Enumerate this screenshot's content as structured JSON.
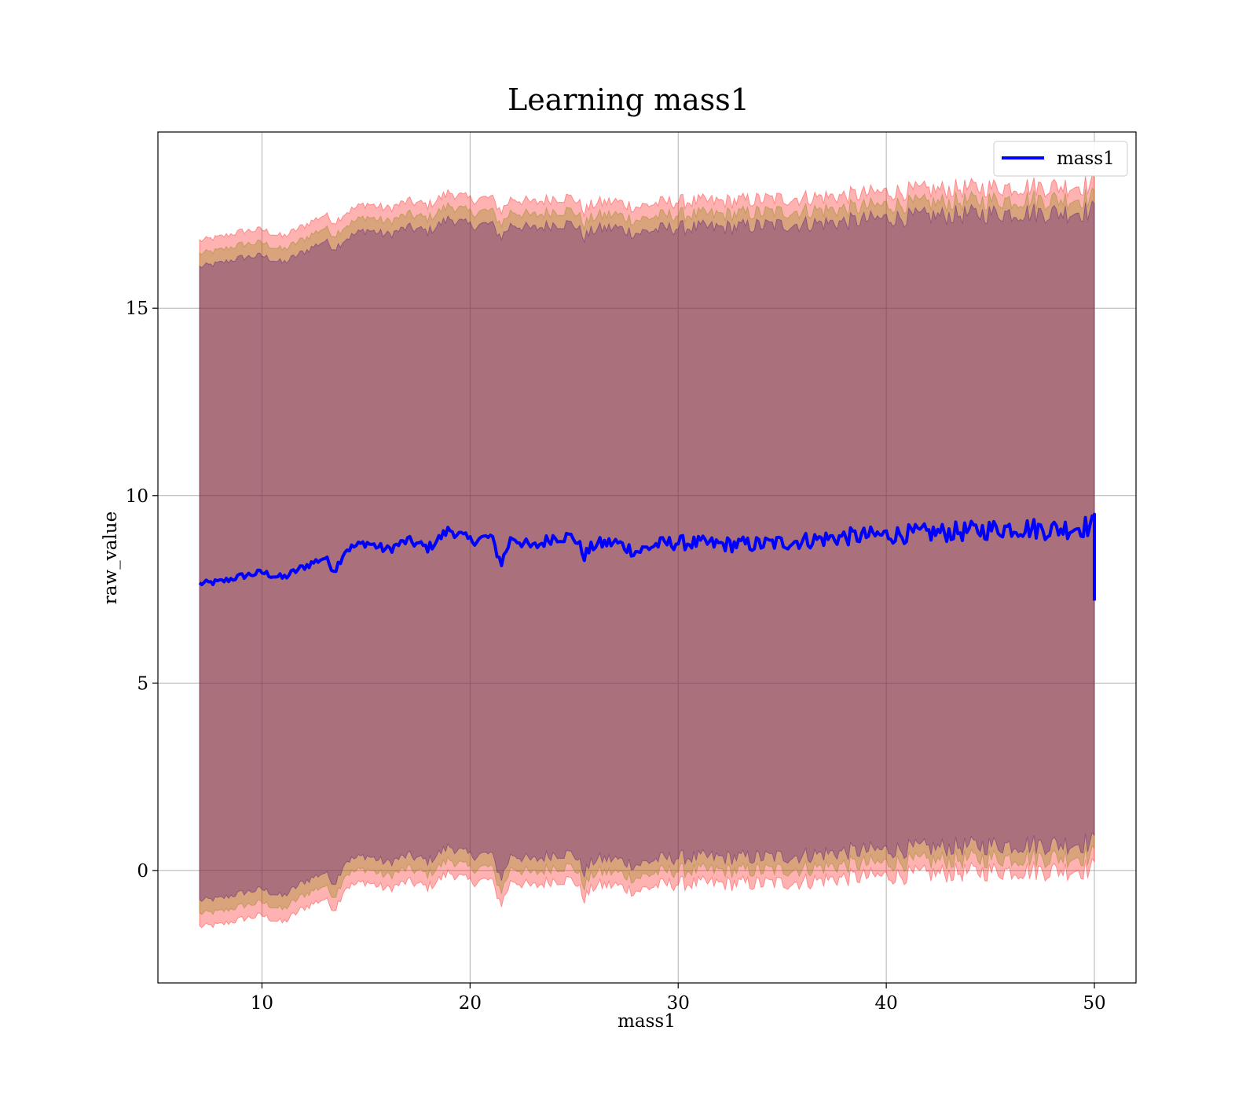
{
  "chart_data": {
    "type": "area",
    "title": "Learning mass1",
    "xlabel": "mass1",
    "ylabel": "raw_value",
    "xlim": [
      5,
      52
    ],
    "ylim": [
      -3,
      19.7
    ],
    "xticks": [
      10,
      20,
      30,
      40,
      50
    ],
    "yticks": [
      0,
      5,
      10,
      15
    ],
    "grid": true,
    "legend": {
      "position": "top-right",
      "entries": [
        "mass1"
      ]
    },
    "colors": {
      "line": "#0000ff",
      "outer_band": "#ff0000",
      "inner_band": "#808000",
      "core_band": "#400080"
    },
    "x": [
      7,
      8,
      9,
      10,
      11,
      12,
      13,
      13.5,
      14,
      15,
      16,
      17,
      18,
      19,
      20,
      21,
      21.5,
      22,
      23,
      24,
      25,
      25.5,
      26,
      27,
      28,
      29,
      30,
      32,
      34,
      36,
      38,
      40,
      42,
      44,
      46,
      48,
      50
    ],
    "series": [
      {
        "name": "mass1",
        "values": [
          7.65,
          7.7,
          7.85,
          7.95,
          7.8,
          8.1,
          8.35,
          8.0,
          8.55,
          8.75,
          8.55,
          8.8,
          8.6,
          9.1,
          8.8,
          8.9,
          8.2,
          8.9,
          8.6,
          8.9,
          8.9,
          8.4,
          8.7,
          8.75,
          8.5,
          8.7,
          8.75,
          8.7,
          8.7,
          8.8,
          8.9,
          8.95,
          9.0,
          9.05,
          9.15,
          9.1,
          9.2
        ]
      }
    ],
    "bands": [
      {
        "role": "outer",
        "upper": [
          16.8,
          16.9,
          17.05,
          17.1,
          16.9,
          17.2,
          17.5,
          17.3,
          17.55,
          17.8,
          17.65,
          17.85,
          17.75,
          18.1,
          17.9,
          17.95,
          17.6,
          17.95,
          17.8,
          17.95,
          17.95,
          17.6,
          17.8,
          17.85,
          17.7,
          17.8,
          17.85,
          17.85,
          17.9,
          17.95,
          18.0,
          18.1,
          18.15,
          18.2,
          18.25,
          18.25,
          18.3
        ],
        "lower": [
          -1.5,
          -1.45,
          -1.3,
          -1.2,
          -1.4,
          -1.0,
          -0.75,
          -1.05,
          -0.45,
          -0.3,
          -0.5,
          -0.3,
          -0.45,
          -0.05,
          -0.3,
          -0.25,
          -0.9,
          -0.25,
          -0.45,
          -0.25,
          -0.25,
          -0.75,
          -0.4,
          -0.4,
          -0.55,
          -0.4,
          -0.35,
          -0.35,
          -0.35,
          -0.3,
          -0.2,
          -0.15,
          -0.1,
          -0.05,
          0.0,
          0.0,
          0.05
        ]
      },
      {
        "role": "inner",
        "upper": [
          16.45,
          16.55,
          16.7,
          16.75,
          16.55,
          16.85,
          17.15,
          16.95,
          17.2,
          17.45,
          17.3,
          17.5,
          17.4,
          17.75,
          17.55,
          17.6,
          17.25,
          17.6,
          17.45,
          17.6,
          17.6,
          17.25,
          17.45,
          17.5,
          17.35,
          17.45,
          17.5,
          17.5,
          17.55,
          17.6,
          17.65,
          17.75,
          17.8,
          17.85,
          17.9,
          17.9,
          17.95
        ],
        "lower": [
          -1.15,
          -1.1,
          -0.95,
          -0.85,
          -1.05,
          -0.65,
          -0.4,
          -0.7,
          -0.1,
          0.05,
          -0.15,
          0.05,
          -0.1,
          0.3,
          0.05,
          0.1,
          -0.55,
          0.1,
          -0.1,
          0.1,
          0.1,
          -0.4,
          -0.05,
          -0.05,
          -0.2,
          -0.05,
          0.0,
          0.0,
          0.0,
          0.05,
          0.15,
          0.2,
          0.25,
          0.3,
          0.35,
          0.35,
          0.4
        ]
      },
      {
        "role": "core",
        "upper": [
          16.1,
          16.2,
          16.35,
          16.4,
          16.2,
          16.5,
          16.8,
          16.6,
          16.85,
          17.1,
          16.95,
          17.15,
          17.05,
          17.4,
          17.2,
          17.25,
          16.9,
          17.25,
          17.1,
          17.25,
          17.25,
          16.9,
          17.1,
          17.15,
          17.0,
          17.1,
          17.15,
          17.15,
          17.2,
          17.25,
          17.3,
          17.4,
          17.45,
          17.5,
          17.55,
          17.55,
          17.6
        ],
        "lower": [
          -0.8,
          -0.75,
          -0.6,
          -0.5,
          -0.7,
          -0.3,
          -0.05,
          -0.35,
          0.25,
          0.4,
          0.2,
          0.4,
          0.25,
          0.65,
          0.4,
          0.45,
          -0.2,
          0.45,
          0.25,
          0.45,
          0.45,
          -0.05,
          0.3,
          0.3,
          0.15,
          0.3,
          0.35,
          0.35,
          0.35,
          0.4,
          0.5,
          0.55,
          0.6,
          0.65,
          0.7,
          0.7,
          0.75
        ]
      }
    ]
  }
}
